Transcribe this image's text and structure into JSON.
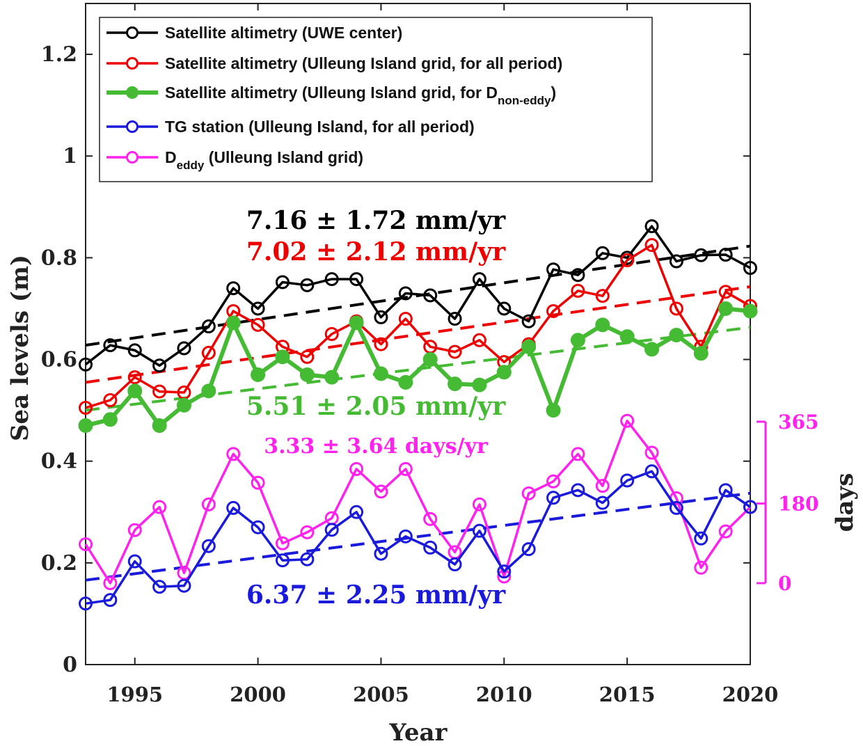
{
  "chart_data": {
    "type": "line",
    "xlabel": "Year",
    "ylabel": "Sea levels (m)",
    "ylabel_right": "days",
    "xlim": [
      1993,
      2020
    ],
    "ylim": [
      0,
      1.3
    ],
    "ylim_right": [
      0,
      365
    ],
    "x_ticks": [
      "1995",
      "2000",
      "2005",
      "2010",
      "2015",
      "2020"
    ],
    "y_ticks": [
      "0",
      "0.2",
      "0.4",
      "0.6",
      "0.8",
      "1",
      "1.2"
    ],
    "y_right_ticks": [
      "0",
      "180",
      "365"
    ],
    "grid": false,
    "legend_position": "top-left",
    "x": [
      1993,
      1994,
      1995,
      1996,
      1997,
      1998,
      1999,
      2000,
      2001,
      2002,
      2003,
      2004,
      2005,
      2006,
      2007,
      2008,
      2009,
      2010,
      2011,
      2012,
      2013,
      2014,
      2015,
      2016,
      2017,
      2018,
      2019,
      2020
    ],
    "series": [
      {
        "name": "Satellite altimetry (UWE center)",
        "color": "#000000",
        "marker": "open-circle",
        "axis": "left",
        "values": [
          0.59,
          0.628,
          0.618,
          0.588,
          0.622,
          0.665,
          0.74,
          0.7,
          0.752,
          0.746,
          0.758,
          0.758,
          0.683,
          0.73,
          0.726,
          0.68,
          0.758,
          0.7,
          0.675,
          0.777,
          0.766,
          0.809,
          0.8,
          0.862,
          0.793,
          0.805,
          0.806,
          0.78
        ],
        "trend": [
          0.628,
          0.823
        ]
      },
      {
        "name": "Satellite altimetry (Ulleung Island grid, for all period)",
        "color": "#ee0000",
        "marker": "open-circle",
        "axis": "left",
        "values": [
          0.505,
          0.52,
          0.565,
          0.537,
          0.535,
          0.613,
          0.695,
          0.668,
          0.625,
          0.605,
          0.65,
          0.675,
          0.63,
          0.68,
          0.625,
          0.615,
          0.638,
          0.595,
          0.63,
          0.695,
          0.735,
          0.725,
          0.795,
          0.825,
          0.7,
          0.625,
          0.733,
          0.705
        ],
        "trend": [
          0.555,
          0.743
        ]
      },
      {
        "name_main": "Satellite altimetry (Ulleung Island grid, for D",
        "name_sub": "non-eddy",
        "name_tail": ")",
        "color": "#44bb33",
        "marker": "filled-circle",
        "axis": "left",
        "values": [
          0.47,
          0.482,
          0.538,
          0.47,
          0.51,
          0.538,
          0.672,
          0.57,
          0.605,
          0.57,
          0.565,
          0.672,
          0.572,
          0.555,
          0.6,
          0.552,
          0.55,
          0.575,
          0.625,
          0.5,
          0.638,
          0.668,
          0.645,
          0.62,
          0.648,
          0.612,
          0.7,
          0.695
        ],
        "trend": [
          0.5,
          0.663
        ]
      },
      {
        "name": "TG station (Ulleung Island, for all period)",
        "color": "#1a1adc",
        "marker": "open-circle",
        "axis": "left",
        "values": [
          0.12,
          0.127,
          0.203,
          0.153,
          0.155,
          0.233,
          0.308,
          0.27,
          0.205,
          0.207,
          0.265,
          0.3,
          0.218,
          0.252,
          0.23,
          0.197,
          0.263,
          0.183,
          0.227,
          0.328,
          0.343,
          0.318,
          0.362,
          0.38,
          0.308,
          0.248,
          0.343,
          0.31
        ],
        "trend": [
          0.166,
          0.337
        ]
      },
      {
        "name_main": "D",
        "name_sub": "eddy",
        "name_tail": " (Ulleung Island grid)",
        "color": "#ff22ee",
        "marker": "open-circle",
        "axis": "right",
        "values": [
          88,
          0,
          120,
          172,
          23,
          178,
          292,
          227,
          90,
          115,
          147,
          258,
          207,
          258,
          145,
          70,
          178,
          15,
          203,
          230,
          292,
          220,
          367,
          295,
          192,
          35,
          117,
          172
        ]
      }
    ],
    "annotations": [
      {
        "label": "7.16 ± 1.72 mm/yr",
        "color": "#000000"
      },
      {
        "label": "7.02 ± 2.12 mm/yr",
        "color": "#ee0000"
      },
      {
        "label": "5.51 ± 2.05 mm/yr",
        "color": "#44bb33"
      },
      {
        "label": "3.33 ± 3.64 days/yr",
        "color": "#ff22ee"
      },
      {
        "label": "6.37 ± 2.25 mm/yr",
        "color": "#1a1adc"
      }
    ]
  }
}
